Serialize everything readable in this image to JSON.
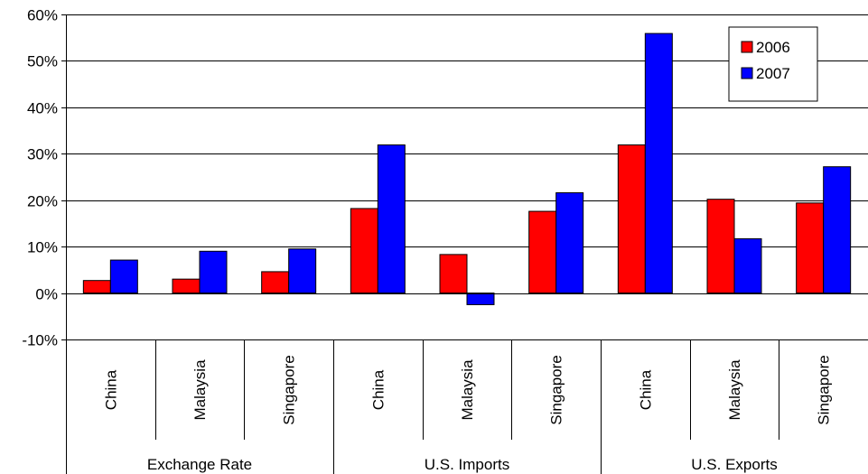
{
  "chart_data": {
    "type": "bar",
    "title": "",
    "xlabel": "",
    "ylabel": "",
    "ylim": [
      -10,
      60
    ],
    "y_ticks": [
      "60%",
      "50%",
      "40%",
      "30%",
      "20%",
      "10%",
      "0%",
      "-10%"
    ],
    "y_tick_values": [
      60,
      50,
      40,
      30,
      20,
      10,
      0,
      -10
    ],
    "grid": true,
    "legend_position": "top-right",
    "groups": [
      {
        "label": "Exchange Rate",
        "categories": [
          "China",
          "Malaysia",
          "Singapore"
        ]
      },
      {
        "label": "U.S. Imports",
        "categories": [
          "China",
          "Malaysia",
          "Singapore"
        ]
      },
      {
        "label": "U.S. Exports",
        "categories": [
          "China",
          "Malaysia",
          "Singapore"
        ]
      }
    ],
    "series": [
      {
        "name": "2006",
        "color": "#ff0000",
        "values": [
          2.7,
          3.0,
          4.6,
          18.2,
          8.3,
          17.6,
          31.9,
          20.2,
          19.4
        ]
      },
      {
        "name": "2007",
        "color": "#0000ff",
        "values": [
          7.1,
          9.0,
          9.5,
          31.9,
          -2.5,
          21.6,
          55.9,
          11.7,
          27.2
        ]
      }
    ]
  }
}
